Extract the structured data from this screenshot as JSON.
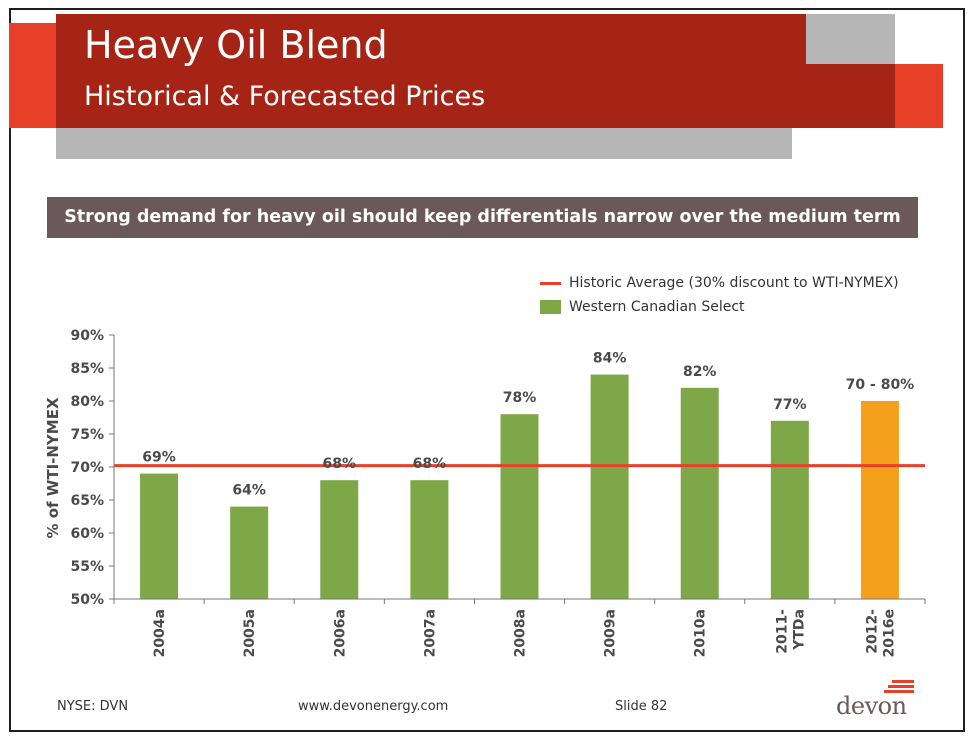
{
  "slide": {
    "title": "Heavy Oil Blend",
    "subtitle": "Historical & Forecasted Prices",
    "banner": "Strong demand for heavy oil should keep differentials narrow over the medium term",
    "footer_left": "NYSE: DVN",
    "footer_center": "www.devonenergy.com",
    "footer_right": "Slide 82",
    "logo_text": "devon"
  },
  "colors": {
    "title_red": "#a52415",
    "accent_red": "#e84028",
    "gray": "#b6b6b6",
    "bar_green": "#7ea848",
    "forecast_orange": "#f4a01c",
    "banner_bg": "#6b585a"
  },
  "chart_data": {
    "type": "bar",
    "categories": [
      "2004a",
      "2005a",
      "2006a",
      "2007a",
      "2008a",
      "2009a",
      "2010a",
      "2011-\nYTDa",
      "2012-\n2016e"
    ],
    "series": [
      {
        "name": "Western Canadian Select",
        "values": [
          69,
          64,
          68,
          68,
          78,
          84,
          82,
          77,
          80
        ]
      }
    ],
    "data_labels": [
      "69%",
      "64%",
      "68%",
      "68%",
      "78%",
      "84%",
      "82%",
      "77%",
      "70 - 80%"
    ],
    "bar_colors": [
      "green",
      "green",
      "green",
      "green",
      "green",
      "green",
      "green",
      "green",
      "orange"
    ],
    "reference_line": {
      "name": "Historic Average (30% discount to WTI-NYMEX)",
      "value": 70.2
    },
    "yticks": [
      "90%",
      "85%",
      "80%",
      "75%",
      "70%",
      "65%",
      "60%",
      "55%",
      "50%"
    ],
    "ylabel": "% of WTI-NYMEX",
    "xlabel": "",
    "ylim": [
      50,
      90
    ],
    "grid": false,
    "legend_position": "top-right"
  }
}
